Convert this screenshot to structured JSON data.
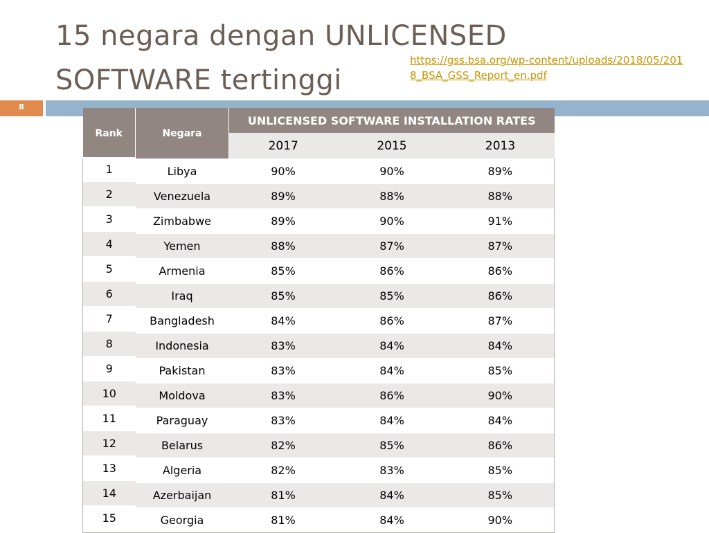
{
  "slide": {
    "title": "15 negara dengan UNLICENSED SOFTWARE tertinggi",
    "source_link": "https://gss.bsa.org/wp-content/uploads/2018/05/2018_BSA_GSS_Report_en.pdf",
    "slide_number": "8",
    "accent_colors": {
      "title": "#6b5e55",
      "link": "#c99400",
      "slide_number_badge": "#e08a4e",
      "rule_bar": "#95b3cc",
      "table_header": "#928682",
      "table_band": "#ebe8e8"
    }
  },
  "table": {
    "rank_header": "Rank",
    "country_header": "Negara",
    "group_header": "UNLICENSED SOFTWARE INSTALLATION RATES",
    "years": [
      "2017",
      "2015",
      "2013"
    ],
    "rows": [
      {
        "rank": "1",
        "country": "Libya",
        "y2017": "90%",
        "y2015": "90%",
        "y2013": "89%"
      },
      {
        "rank": "2",
        "country": "Venezuela",
        "y2017": "89%",
        "y2015": "88%",
        "y2013": "88%"
      },
      {
        "rank": "3",
        "country": "Zimbabwe",
        "y2017": "89%",
        "y2015": "90%",
        "y2013": "91%"
      },
      {
        "rank": "4",
        "country": "Yemen",
        "y2017": "88%",
        "y2015": "87%",
        "y2013": "87%"
      },
      {
        "rank": "5",
        "country": "Armenia",
        "y2017": "85%",
        "y2015": "86%",
        "y2013": "86%"
      },
      {
        "rank": "6",
        "country": "Iraq",
        "y2017": "85%",
        "y2015": "85%",
        "y2013": "86%"
      },
      {
        "rank": "7",
        "country": "Bangladesh",
        "y2017": "84%",
        "y2015": "86%",
        "y2013": "87%"
      },
      {
        "rank": "8",
        "country": "Indonesia",
        "y2017": "83%",
        "y2015": "84%",
        "y2013": "84%"
      },
      {
        "rank": "9",
        "country": "Pakistan",
        "y2017": "83%",
        "y2015": "84%",
        "y2013": "85%"
      },
      {
        "rank": "10",
        "country": "Moldova",
        "y2017": "83%",
        "y2015": "86%",
        "y2013": "90%"
      },
      {
        "rank": "11",
        "country": "Paraguay",
        "y2017": "83%",
        "y2015": "84%",
        "y2013": "84%"
      },
      {
        "rank": "12",
        "country": "Belarus",
        "y2017": "82%",
        "y2015": "85%",
        "y2013": "86%"
      },
      {
        "rank": "13",
        "country": "Algeria",
        "y2017": "82%",
        "y2015": "83%",
        "y2013": "85%"
      },
      {
        "rank": "14",
        "country": "Azerbaijan",
        "y2017": "81%",
        "y2015": "84%",
        "y2013": "85%"
      },
      {
        "rank": "15",
        "country": "Georgia",
        "y2017": "81%",
        "y2015": "84%",
        "y2013": "90%"
      }
    ]
  }
}
